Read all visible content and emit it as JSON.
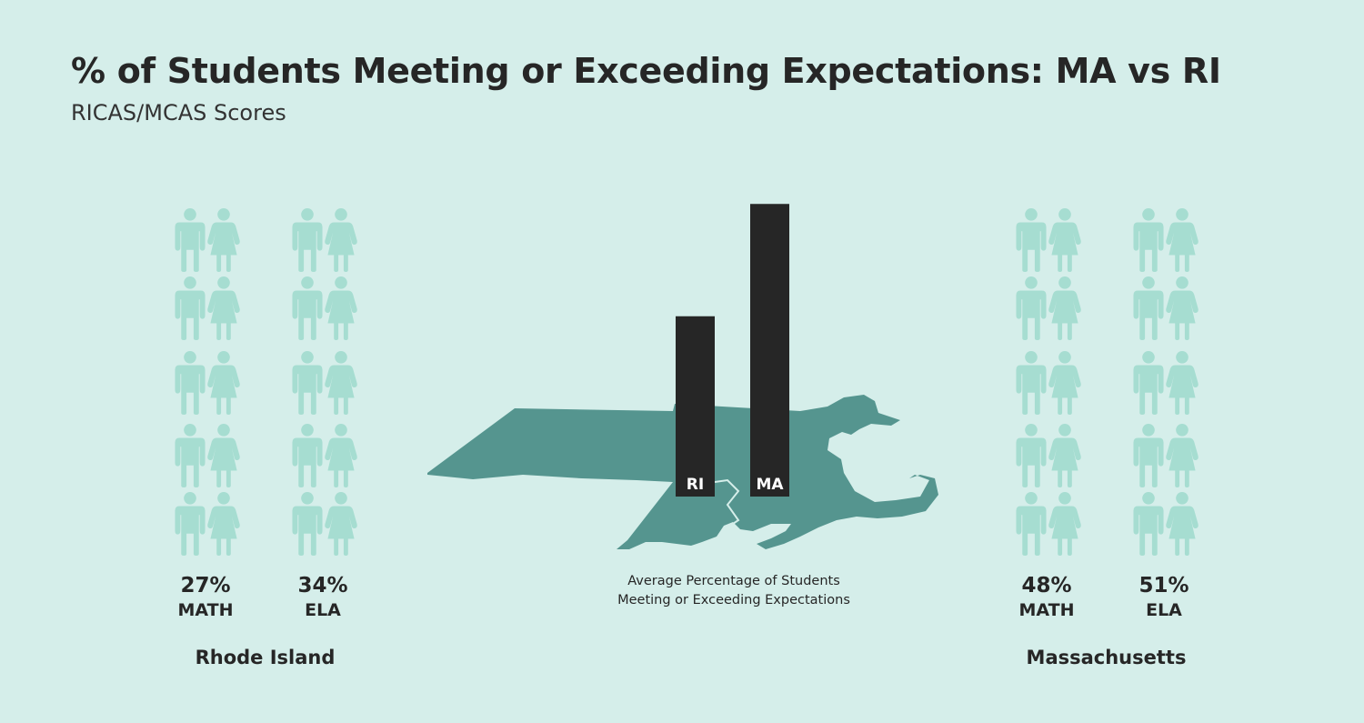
{
  "title": "% of Students Meeting or Exceeding Expectations: MA vs RI",
  "subtitle": "RICAS/MCAS Scores",
  "colors": {
    "background": "#d5eeea",
    "person_filled": "#d06868",
    "person_empty": "#a6ddd1",
    "map": "#55958f",
    "bar": "#262626"
  },
  "states": [
    {
      "name": "Rhode Island",
      "groups": [
        {
          "value_label": "27%",
          "subject": "MATH",
          "value": 27
        },
        {
          "value_label": "34%",
          "subject": "ELA",
          "value": 34
        }
      ]
    },
    {
      "name": "Massachusetts",
      "groups": [
        {
          "value_label": "48%",
          "subject": "MATH",
          "value": 48
        },
        {
          "value_label": "51%",
          "subject": "ELA",
          "value": 51
        }
      ]
    }
  ],
  "chart_data": {
    "type": "bar",
    "categories": [
      "RI",
      "MA"
    ],
    "values": [
      30.5,
      49.5
    ],
    "caption_lines": [
      "Average Percentage of Students",
      "Meeting or Exceeding Expectations"
    ]
  }
}
